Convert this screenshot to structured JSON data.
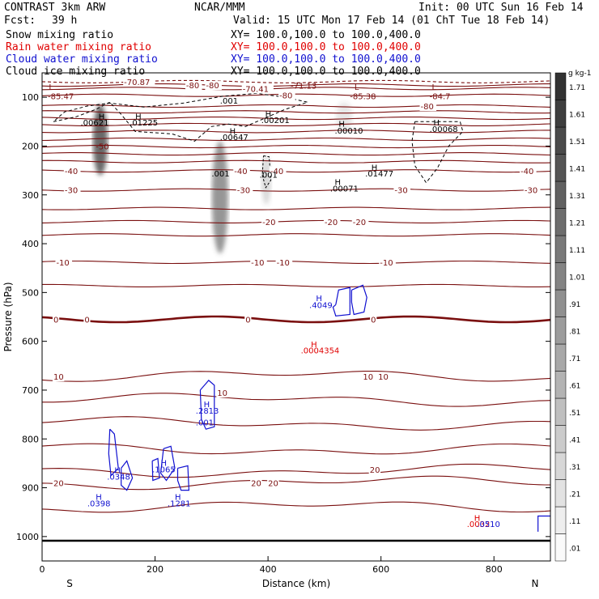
{
  "header": {
    "title_left": "CONTRAST  3km ARW",
    "title_center": "NCAR/MMM",
    "init": "Init: 00 UTC Sun 16 Feb 14",
    "fcst_label": "Fcst:",
    "fcst_value": "39 h",
    "valid": "Valid: 15 UTC Mon 17 Feb 14 (01 ChT Tue 18 Feb 14)"
  },
  "legend": [
    {
      "label": "Snow mixing ratio",
      "xy": "XY= 100.0,100.0 to 100.0,400.0",
      "color": "#000000"
    },
    {
      "label": "Rain water mixing ratio",
      "xy": "XY= 100.0,100.0 to 100.0,400.0",
      "color": "#e00000"
    },
    {
      "label": "Cloud water mixing ratio",
      "xy": "XY= 100.0,100.0 to 100.0,400.0",
      "color": "#1010d0"
    },
    {
      "label": "Cloud ice mixing ratio",
      "xy": "XY= 100.0,100.0 to 100.0,400.0",
      "color": "#000000"
    }
  ],
  "colors": {
    "temperature": "#7a0f0f",
    "snow_shading": "#505050",
    "rain": "#e00000",
    "cloud_water": "#1010d0",
    "ice": "#000000"
  },
  "chart_data": {
    "type": "contour",
    "xlabel": "Distance (km)",
    "ylabel": "Pressure (hPa)",
    "xlim": [
      0,
      900
    ],
    "ylim": [
      1050,
      50
    ],
    "xticks": [
      0,
      200,
      400,
      600,
      800
    ],
    "yticks": [
      100,
      200,
      300,
      400,
      500,
      600,
      700,
      800,
      900,
      1000
    ],
    "x_end_labels": {
      "left": "S",
      "right": "N"
    },
    "colorbar": {
      "unit": "g kg-1",
      "levels": [
        ".01",
        ".11",
        ".21",
        ".31",
        ".41",
        ".51",
        ".61",
        ".71",
        ".81",
        ".91",
        "1.01",
        "1.11",
        "1.21",
        "1.31",
        "1.41",
        "1.51",
        "1.61",
        "1.71"
      ]
    },
    "temperature_contours": [
      {
        "p": 68,
        "label": "-70.87",
        "label_x": 145,
        "dash": true
      },
      {
        "p": 75,
        "label": "-80",
        "label_x": 255,
        "dash": false
      },
      {
        "p": 82,
        "label": "-70.41",
        "label_x": 355,
        "dash": false
      },
      {
        "p": 96,
        "label": "-80",
        "label_x": 420,
        "dash": false
      },
      {
        "p": 118,
        "label": "-80",
        "label_x": 670,
        "dash": false
      },
      {
        "p": 130,
        "label": "",
        "label_x": 0,
        "dash": false
      },
      {
        "p": 143,
        "label": "",
        "label_x": 0,
        "dash": false
      },
      {
        "p": 156,
        "label": "",
        "label_x": 0,
        "dash": false
      },
      {
        "p": 170,
        "label": "",
        "label_x": 0,
        "dash": false
      },
      {
        "p": 186,
        "label": "",
        "label_x": 0,
        "dash": false
      },
      {
        "p": 201,
        "label": "",
        "label_x": 0,
        "dash": false
      },
      {
        "p": 216,
        "label": "",
        "label_x": 0,
        "dash": false
      },
      {
        "p": 232,
        "label": "",
        "label_x": 0,
        "dash": false
      },
      {
        "p": 251,
        "label": "-40",
        "label_x": 40,
        "dash": false
      },
      {
        "p": 290,
        "label": "-30",
        "label_x": 40,
        "dash": false
      },
      {
        "p": 328,
        "label": "",
        "label_x": 0,
        "dash": false
      },
      {
        "p": 355,
        "label": "-20",
        "label_x": 500,
        "dash": false
      },
      {
        "p": 382,
        "label": "",
        "label_x": 0,
        "dash": false
      },
      {
        "p": 438,
        "label": "-10",
        "label_x": 415,
        "dash": false
      },
      {
        "p": 486,
        "label": "",
        "label_x": 0,
        "dash": false
      },
      {
        "p": 555,
        "label": "0",
        "label_x": 20,
        "dash": false,
        "bold": true
      },
      {
        "p": 672,
        "label": "10",
        "label_x": 20,
        "dash": false
      },
      {
        "p": 720,
        "label": "",
        "label_x": 0,
        "dash": false
      },
      {
        "p": 768,
        "label": "",
        "label_x": 0,
        "dash": false
      },
      {
        "p": 820,
        "label": "",
        "label_x": 0,
        "dash": false
      },
      {
        "p": 865,
        "label": "",
        "label_x": 0,
        "dash": false
      },
      {
        "p": 890,
        "label": "20",
        "label_x": 20,
        "dash": false
      },
      {
        "p": 940,
        "label": "",
        "label_x": 0,
        "dash": false
      }
    ],
    "snow_cores": [
      {
        "x": 103,
        "p1": 115,
        "p2": 260,
        "intensity": 1.0,
        "w": 9
      },
      {
        "x": 315,
        "p1": 190,
        "p2": 420,
        "intensity": 0.7,
        "w": 10
      },
      {
        "x": 397,
        "p1": 220,
        "p2": 320,
        "intensity": 0.25,
        "w": 6
      },
      {
        "x": 535,
        "p1": 110,
        "p2": 170,
        "intensity": 0.15,
        "w": 10
      }
    ],
    "ice_labels": [
      {
        "text": "L",
        "x": 12,
        "p": 85
      },
      {
        "text": "-85.47",
        "x": 10,
        "p": 104
      },
      {
        "text": "H",
        "x": 100,
        "p": 145
      },
      {
        "text": ".00621",
        "x": 68,
        "p": 158
      },
      {
        "text": "H",
        "x": 165,
        "p": 145
      },
      {
        "text": ".01225",
        "x": 155,
        "p": 158
      },
      {
        "text": "-50",
        "x": 95,
        "p": 207
      },
      {
        "text": ".001",
        "x": 315,
        "p": 113
      },
      {
        "text": "H",
        "x": 332,
        "p": 175
      },
      {
        "text": ".00647",
        "x": 315,
        "p": 188
      },
      {
        "text": ".001",
        "x": 300,
        "p": 262
      },
      {
        "text": ".001",
        "x": 385,
        "p": 265
      },
      {
        "text": "H",
        "x": 395,
        "p": 140
      },
      {
        "text": ".00201",
        "x": 388,
        "p": 153
      },
      {
        "text": "-71.13",
        "x": 440,
        "p": 82
      },
      {
        "text": "H",
        "x": 525,
        "p": 160
      },
      {
        "text": ".00010",
        "x": 518,
        "p": 174
      },
      {
        "text": "L",
        "x": 553,
        "p": 85
      },
      {
        "text": "-85.38",
        "x": 545,
        "p": 104
      },
      {
        "text": "H",
        "x": 583,
        "p": 250
      },
      {
        "text": ".01477",
        "x": 572,
        "p": 262
      },
      {
        "text": "H",
        "x": 518,
        "p": 280
      },
      {
        "text": ".00071",
        "x": 510,
        "p": 293
      },
      {
        "text": "L",
        "x": 690,
        "p": 85
      },
      {
        "text": "-84.7",
        "x": 686,
        "p": 104
      },
      {
        "text": "H",
        "x": 693,
        "p": 158
      },
      {
        "text": ".00068",
        "x": 686,
        "p": 171
      }
    ],
    "rain_labels": [
      {
        "text": "H",
        "x": 476,
        "p": 612
      },
      {
        "text": ".0004354",
        "x": 458,
        "p": 625
      },
      {
        "text": "H",
        "x": 765,
        "p": 968
      },
      {
        "text": ".0032",
        "x": 752,
        "p": 980
      }
    ],
    "cloud_water_labels": [
      {
        "text": "H",
        "x": 485,
        "p": 518
      },
      {
        "text": ".4049",
        "x": 473,
        "p": 532
      },
      {
        "text": "H",
        "x": 286,
        "p": 735
      },
      {
        "text": ".2813",
        "x": 272,
        "p": 748
      },
      {
        "text": ".001",
        "x": 272,
        "p": 772
      },
      {
        "text": "H",
        "x": 128,
        "p": 870
      },
      {
        "text": ".0348",
        "x": 115,
        "p": 883
      },
      {
        "text": "H",
        "x": 210,
        "p": 855
      },
      {
        "text": ".1065",
        "x": 195,
        "p": 868
      },
      {
        "text": "H",
        "x": 95,
        "p": 925
      },
      {
        "text": ".0398",
        "x": 80,
        "p": 938
      },
      {
        "text": "H",
        "x": 235,
        "p": 925
      },
      {
        "text": ".1281",
        "x": 222,
        "p": 938
      },
      {
        "text": ".0510",
        "x": 770,
        "p": 980
      }
    ],
    "extra_temp_labels": [
      {
        "text": "-80",
        "x": 290,
        "p": 75
      },
      {
        "text": "-40",
        "x": 340,
        "p": 251
      },
      {
        "text": "-40",
        "x": 404,
        "p": 251
      },
      {
        "text": "-40",
        "x": 847,
        "p": 251
      },
      {
        "text": "-30",
        "x": 345,
        "p": 290
      },
      {
        "text": "-30",
        "x": 624,
        "p": 290
      },
      {
        "text": "-30",
        "x": 854,
        "p": 290
      },
      {
        "text": "-20",
        "x": 390,
        "p": 355
      },
      {
        "text": "-20",
        "x": 550,
        "p": 355
      },
      {
        "text": "-10",
        "x": 25,
        "p": 438
      },
      {
        "text": "-10",
        "x": 370,
        "p": 438
      },
      {
        "text": "-10",
        "x": 598,
        "p": 438
      },
      {
        "text": "0",
        "x": 75,
        "p": 555
      },
      {
        "text": "0",
        "x": 360,
        "p": 555
      },
      {
        "text": "0",
        "x": 582,
        "p": 555
      },
      {
        "text": "10",
        "x": 310,
        "p": 705
      },
      {
        "text": "10",
        "x": 568,
        "p": 672
      },
      {
        "text": "10",
        "x": 595,
        "p": 672
      },
      {
        "text": "20",
        "x": 370,
        "p": 890
      },
      {
        "text": "20",
        "x": 400,
        "p": 890
      },
      {
        "text": "20",
        "x": 580,
        "p": 863
      }
    ]
  }
}
